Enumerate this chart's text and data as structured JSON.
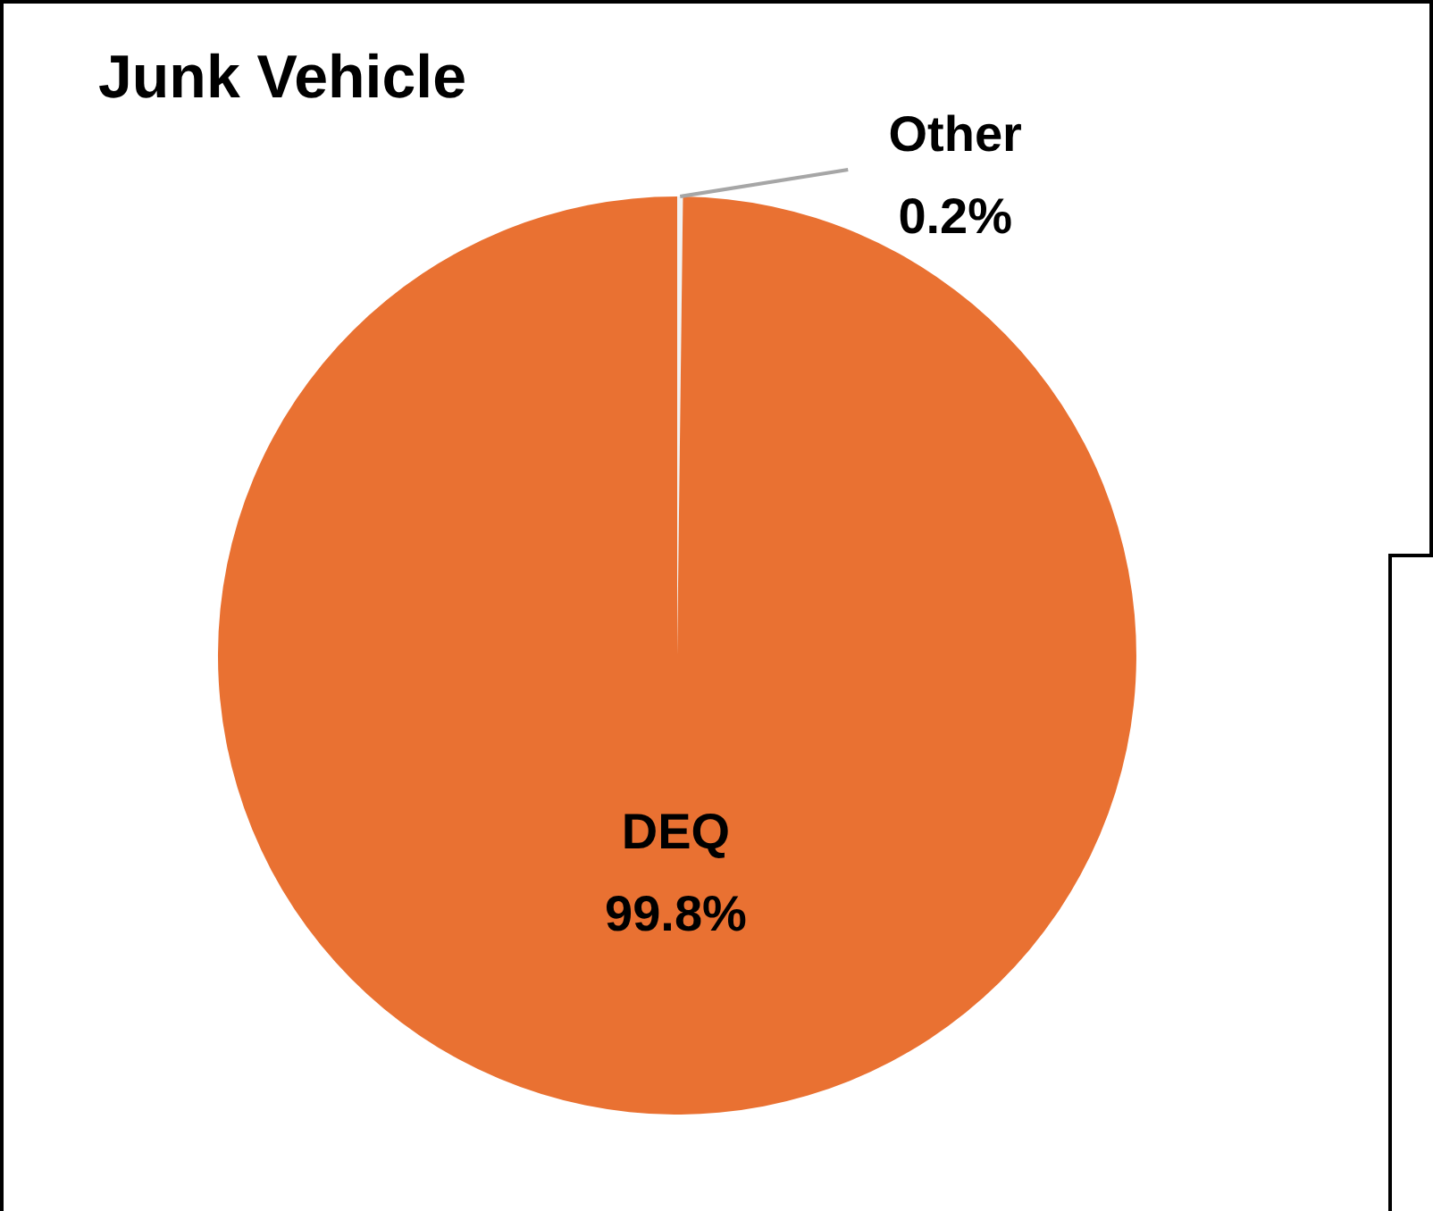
{
  "chart_data": {
    "type": "pie",
    "title": "Junk Vehicle",
    "categories": [
      "Other",
      "DEQ"
    ],
    "values": [
      0.2,
      99.8
    ],
    "value_labels": [
      "0.2%",
      "99.8%"
    ],
    "colors": [
      "#f2f2f2",
      "#e97132"
    ],
    "legend": false
  }
}
